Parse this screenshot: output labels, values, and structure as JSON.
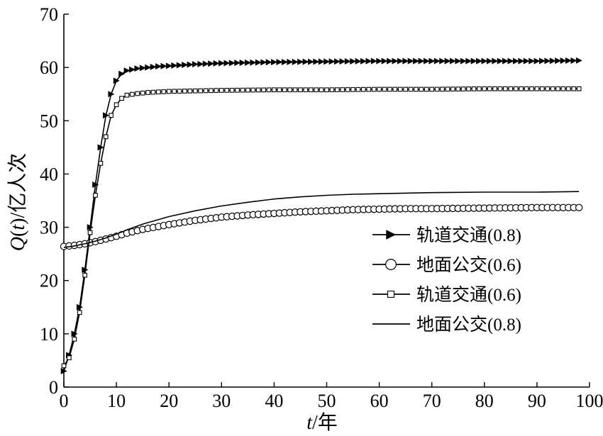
{
  "chart_data": {
    "type": "line",
    "title": "",
    "xlabel": "t/年",
    "xlabel_var": "t",
    "xlabel_unit": "/年",
    "ylabel": "Q(t)/亿人次",
    "ylabel_var": "Q",
    "ylabel_open": "(",
    "ylabel_arg": "t",
    "ylabel_close": ")",
    "ylabel_unit": "/亿人次",
    "xlim": [
      0,
      100
    ],
    "ylim": [
      0,
      70
    ],
    "xticks": [
      0,
      10,
      20,
      30,
      40,
      50,
      60,
      70,
      80,
      90,
      100
    ],
    "yticks": [
      0,
      10,
      20,
      30,
      40,
      50,
      60,
      70
    ],
    "grid": false,
    "legend_position": "right-middle",
    "series": [
      {
        "name": "轨道交通(0.8)",
        "marker": "triangle-right",
        "x": [
          0,
          1,
          2,
          3,
          4,
          5,
          6,
          7,
          8,
          9,
          10,
          11,
          12,
          14,
          16,
          18,
          20,
          25,
          30,
          40,
          50,
          60,
          70,
          80,
          90,
          98
        ],
        "y": [
          3,
          6,
          10,
          15,
          22,
          30,
          38,
          45,
          51,
          55,
          57.5,
          58.8,
          59.4,
          59.8,
          60.0,
          60.2,
          60.3,
          60.6,
          60.8,
          61.0,
          61.1,
          61.2,
          61.2,
          61.2,
          61.2,
          61.3
        ]
      },
      {
        "name": "地面公交(0.6)",
        "marker": "circle",
        "x": [
          0,
          2,
          4,
          6,
          8,
          10,
          12,
          15,
          20,
          25,
          30,
          35,
          40,
          45,
          50,
          55,
          60,
          65,
          70,
          80,
          90,
          98
        ],
        "y": [
          26.4,
          26.6,
          26.9,
          27.3,
          27.8,
          28.3,
          28.9,
          29.6,
          30.5,
          31.3,
          31.9,
          32.3,
          32.6,
          32.9,
          33.1,
          33.3,
          33.4,
          33.5,
          33.5,
          33.6,
          33.7,
          33.7
        ]
      },
      {
        "name": "轨道交通(0.6)",
        "marker": "square",
        "x": [
          0,
          1,
          2,
          3,
          4,
          5,
          6,
          7,
          8,
          9,
          10,
          11,
          12,
          14,
          16,
          18,
          20,
          25,
          30,
          40,
          50,
          60,
          70,
          80,
          90,
          98
        ],
        "y": [
          4,
          5.5,
          9,
          14,
          21,
          29,
          36,
          42,
          47,
          51,
          53,
          54.2,
          54.8,
          55.1,
          55.3,
          55.4,
          55.5,
          55.6,
          55.7,
          55.8,
          55.8,
          55.9,
          55.9,
          56.0,
          56.0,
          56.0
        ]
      },
      {
        "name": "地面公交(0.8)",
        "marker": "none",
        "x": [
          0,
          2,
          4,
          6,
          8,
          10,
          12,
          15,
          20,
          25,
          30,
          35,
          40,
          45,
          50,
          55,
          60,
          70,
          80,
          90,
          98
        ],
        "y": [
          26.2,
          26.5,
          26.9,
          27.4,
          28.0,
          28.7,
          29.5,
          30.6,
          32.0,
          33.1,
          34.0,
          34.7,
          35.3,
          35.7,
          36.0,
          36.2,
          36.3,
          36.5,
          36.6,
          36.6,
          36.7
        ]
      }
    ]
  }
}
